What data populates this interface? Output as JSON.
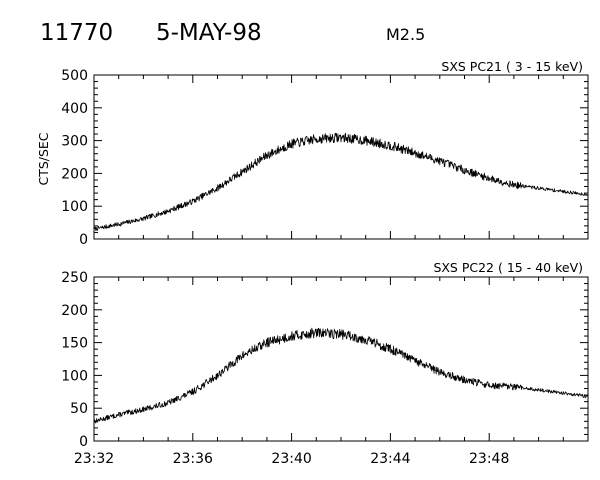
{
  "header": {
    "flare_number": "11770",
    "date": "5-MAY-98",
    "class": "M2.5"
  },
  "chart_data": [
    {
      "type": "line",
      "title": "SXS PC21  (  3 - 15 keV)",
      "ylabel": "CTS/SEC",
      "xlabel": "",
      "x_range": [
        "23:32",
        "23:52"
      ],
      "ylim": [
        0,
        500
      ],
      "yticks": [
        0,
        100,
        200,
        300,
        400,
        500
      ],
      "xticks": [
        "23:32",
        "23:36",
        "23:40",
        "23:44",
        "23:48"
      ],
      "grid": false,
      "series": [
        {
          "x": [
            "23:32",
            "23:33",
            "23:34",
            "23:35",
            "23:36",
            "23:37",
            "23:38",
            "23:39",
            "23:40",
            "23:41",
            "23:42",
            "23:43",
            "23:44",
            "23:45",
            "23:46",
            "23:47",
            "23:48",
            "23:49",
            "23:50",
            "23:51",
            "23:52"
          ],
          "values": [
            30,
            45,
            62,
            85,
            115,
            155,
            205,
            255,
            290,
            305,
            310,
            300,
            285,
            262,
            238,
            210,
            185,
            165,
            155,
            145,
            135
          ]
        }
      ]
    },
    {
      "type": "line",
      "title": "SXS PC22  ( 15 - 40 keV)",
      "ylabel": "",
      "xlabel": "",
      "x_range": [
        "23:32",
        "23:52"
      ],
      "ylim": [
        0,
        250
      ],
      "yticks": [
        0,
        50,
        100,
        150,
        200,
        250
      ],
      "xticks": [
        "23:32",
        "23:36",
        "23:40",
        "23:44",
        "23:48"
      ],
      "grid": false,
      "series": [
        {
          "x": [
            "23:32",
            "23:33",
            "23:34",
            "23:35",
            "23:36",
            "23:37",
            "23:38",
            "23:39",
            "23:40",
            "23:41",
            "23:42",
            "23:43",
            "23:44",
            "23:45",
            "23:46",
            "23:47",
            "23:48",
            "23:49",
            "23:50",
            "23:51",
            "23:52"
          ],
          "values": [
            30,
            40,
            48,
            58,
            75,
            100,
            130,
            150,
            160,
            165,
            163,
            155,
            140,
            122,
            105,
            93,
            85,
            82,
            78,
            73,
            68
          ]
        }
      ]
    }
  ]
}
